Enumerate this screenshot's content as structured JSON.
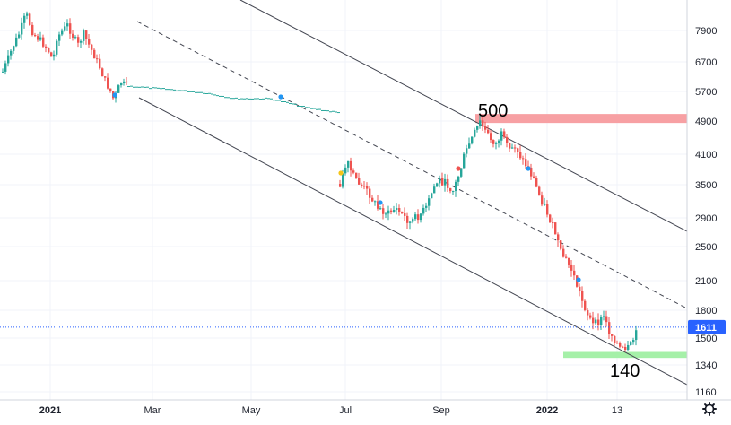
{
  "chart_data": {
    "type": "candlestick",
    "y_scale": "log",
    "ylim": [
      1100,
      9000
    ],
    "y_ticks": [
      "7900",
      "6700",
      "5700",
      "4900",
      "4100",
      "3500",
      "2900",
      "2500",
      "2100",
      "1800",
      "1500",
      "1340",
      "1160"
    ],
    "x_ticks": [
      {
        "label": "2021",
        "bold": true
      },
      {
        "label": "Mar",
        "bold": false
      },
      {
        "label": "May",
        "bold": false
      },
      {
        "label": "Jul",
        "bold": false
      },
      {
        "label": "Sep",
        "bold": false
      },
      {
        "label": "2022",
        "bold": true
      },
      {
        "label": "13",
        "bold": false
      }
    ],
    "last_price": "1611",
    "annotations": [
      {
        "text": "500",
        "near_price": 4990
      },
      {
        "text": "140",
        "near_price": 1380
      }
    ],
    "zones": [
      {
        "name": "resistance-zone",
        "low": 4850,
        "high": 5080,
        "color": "#f7a0a3"
      },
      {
        "name": "support-zone",
        "low": 1380,
        "high": 1415,
        "color": "#a5f0a8"
      }
    ],
    "trend_lines": [
      {
        "name": "upper-channel-line",
        "style": "solid"
      },
      {
        "name": "middle-channel-line",
        "style": "dashed"
      },
      {
        "name": "lower-channel-line",
        "style": "solid"
      }
    ],
    "colors": {
      "up": "#26a69a",
      "down": "#ef5350",
      "last_price_line": "#2962ff",
      "last_price_tag": "#2962ff",
      "grid": "#f0f3fa",
      "dividend_marker": "#2196f3",
      "event_marker_yellow": "#f5c518",
      "event_marker_red": "#ef5350"
    },
    "icons": [
      "gear-icon"
    ]
  }
}
